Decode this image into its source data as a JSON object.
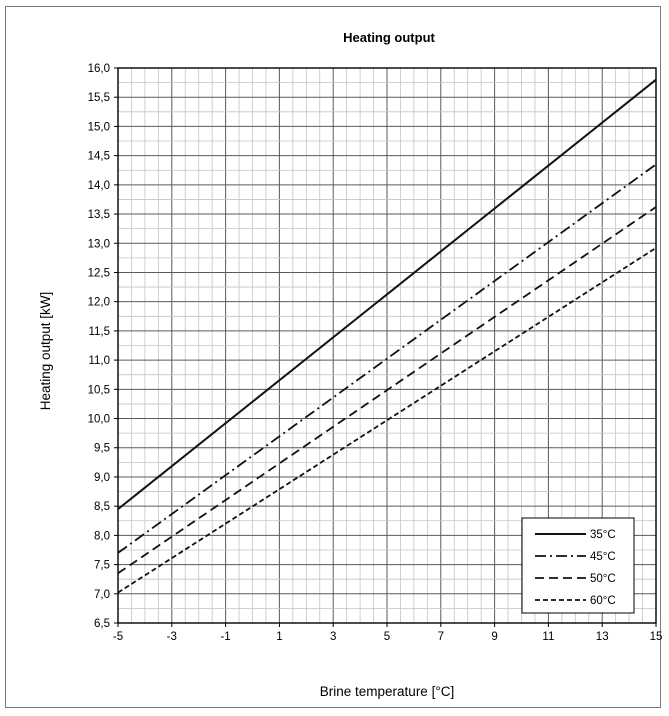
{
  "chart_data": {
    "type": "line",
    "title": "Heating output",
    "xlabel": "Brine temperature [°C]",
    "ylabel": "Heating output [kW]",
    "xlim": [
      -5,
      15
    ],
    "ylim": [
      6.5,
      16.0
    ],
    "x_ticks": [
      "-5",
      "-3",
      "-1",
      "1",
      "3",
      "5",
      "7",
      "9",
      "11",
      "13",
      "15"
    ],
    "y_ticks": [
      "6,5",
      "7,0",
      "7,5",
      "8,0",
      "8,5",
      "9,0",
      "9,5",
      "10,0",
      "10,5",
      "11,0",
      "11,5",
      "12,0",
      "12,5",
      "13,0",
      "13,5",
      "14,0",
      "14,5",
      "15,0",
      "15,5",
      "16,0"
    ],
    "grid": true,
    "legend_position": "bottom-right",
    "series": [
      {
        "name": "35°C",
        "x": [
          -5,
          15
        ],
        "y": [
          8.45,
          15.8
        ],
        "dash": "solid"
      },
      {
        "name": "45°C",
        "x": [
          -5,
          15
        ],
        "y": [
          7.7,
          14.35
        ],
        "dash": "dashdot"
      },
      {
        "name": "50°C",
        "x": [
          -5,
          15
        ],
        "y": [
          7.35,
          13.62
        ],
        "dash": "dash"
      },
      {
        "name": "60°C",
        "x": [
          -5,
          15
        ],
        "y": [
          7.02,
          12.92
        ],
        "dash": "shortdash"
      }
    ]
  }
}
